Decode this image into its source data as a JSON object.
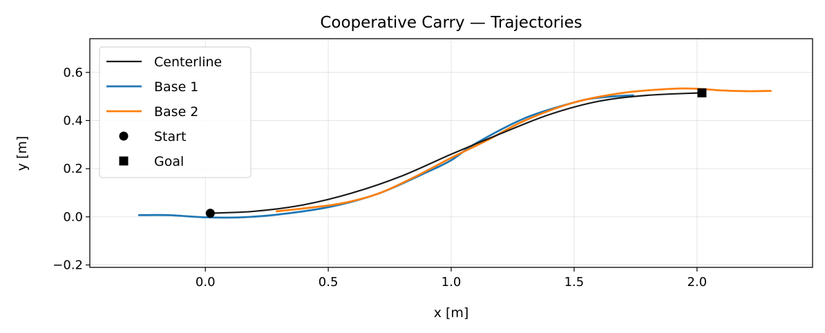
{
  "chart_data": {
    "type": "line",
    "title": "Cooperative Carry — Trajectories",
    "xlabel": "x [m]",
    "ylabel": "y [m]",
    "xlim": [
      -0.47,
      2.47
    ],
    "ylim": [
      -0.21,
      0.74
    ],
    "xticks": [
      0.0,
      0.5,
      1.0,
      1.5,
      2.0
    ],
    "xtick_labels": [
      "0.0",
      "0.5",
      "1.0",
      "1.5",
      "2.0"
    ],
    "yticks": [
      -0.2,
      0.0,
      0.2,
      0.4,
      0.6
    ],
    "ytick_labels": [
      "−0.2",
      "0.0",
      "0.2",
      "0.4",
      "0.6"
    ],
    "grid": true,
    "legend_position": "top-left",
    "series": [
      {
        "name": "Centerline",
        "color": "#1a1a1a",
        "x": [
          0.02,
          0.2,
          0.4,
          0.6,
          0.8,
          1.0,
          1.2,
          1.4,
          1.6,
          1.8,
          2.02
        ],
        "y": [
          0.015,
          0.023,
          0.05,
          0.1,
          0.17,
          0.26,
          0.345,
          0.425,
          0.48,
          0.505,
          0.515
        ]
      },
      {
        "name": "Base 1",
        "color": "#1f77b4",
        "x": [
          -0.27,
          -0.15,
          0.0,
          0.15,
          0.3,
          0.5,
          0.7,
          0.9,
          1.0,
          1.1,
          1.3,
          1.5,
          1.6,
          1.74
        ],
        "y": [
          0.007,
          0.007,
          -0.002,
          -0.002,
          0.01,
          0.04,
          0.095,
          0.185,
          0.235,
          0.305,
          0.41,
          0.475,
          0.495,
          0.505
        ]
      },
      {
        "name": "Base 2",
        "color": "#ff7f0e",
        "x": [
          0.29,
          0.4,
          0.55,
          0.7,
          0.85,
          1.0,
          1.15,
          1.3,
          1.5,
          1.7,
          1.9,
          2.0,
          2.1,
          2.2,
          2.3
        ],
        "y": [
          0.023,
          0.035,
          0.055,
          0.095,
          0.165,
          0.245,
          0.32,
          0.4,
          0.475,
          0.515,
          0.532,
          0.532,
          0.525,
          0.522,
          0.523
        ]
      }
    ],
    "markers": [
      {
        "name": "Start",
        "shape": "circle",
        "color": "#000000",
        "x": 0.02,
        "y": 0.015
      },
      {
        "name": "Goal",
        "shape": "square",
        "color": "#000000",
        "x": 2.02,
        "y": 0.515
      }
    ]
  }
}
